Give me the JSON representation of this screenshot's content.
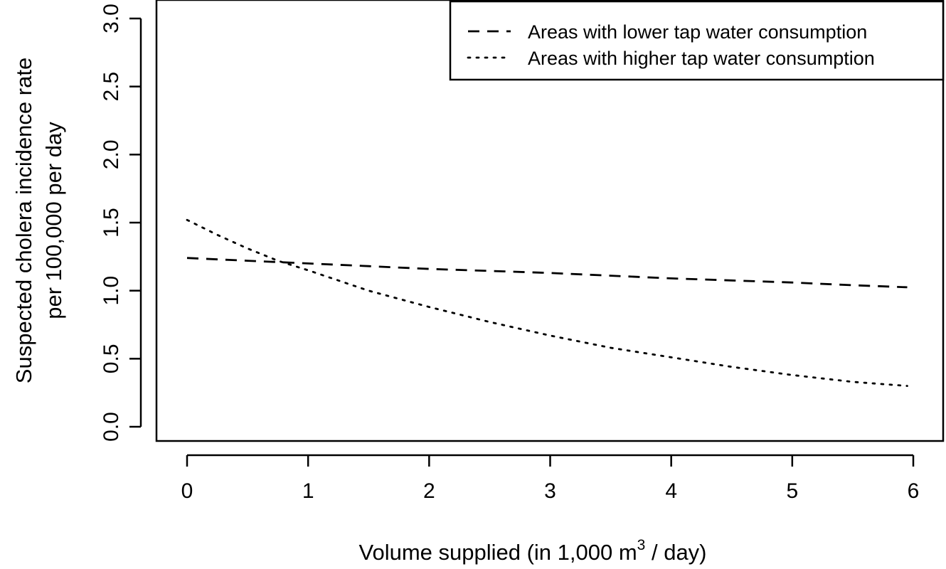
{
  "chart_data": {
    "type": "line",
    "title": "",
    "xlabel": {
      "prefix": "Volume supplied (in 1,000 m",
      "superscript": "3",
      "suffix": " / day)"
    },
    "ylabel_lines": [
      "Suspected cholera incidence rate",
      "per 100,000 per day"
    ],
    "xlim": [
      0,
      6
    ],
    "ylim": [
      0,
      3
    ],
    "x_ticks": [
      0,
      1,
      2,
      3,
      4,
      5,
      6
    ],
    "x_tick_labels": [
      "0",
      "1",
      "2",
      "3",
      "4",
      "5",
      "6"
    ],
    "y_ticks": [
      0,
      0.5,
      1,
      1.5,
      2,
      2.5,
      3
    ],
    "y_tick_labels": [
      "0.0",
      "0.5",
      "1.0",
      "1.5",
      "2.0",
      "2.5",
      "3.0"
    ],
    "grid": false,
    "legend_position": "top-right",
    "series": [
      {
        "name": "Areas with lower tap water consumption",
        "line_style": "dashed",
        "color": "#000000",
        "x": [
          0,
          0.5,
          1,
          1.5,
          2,
          2.5,
          3,
          3.5,
          4,
          4.5,
          5,
          5.5,
          5.95
        ],
        "y": [
          1.24,
          1.22,
          1.2,
          1.18,
          1.16,
          1.145,
          1.13,
          1.11,
          1.09,
          1.075,
          1.06,
          1.04,
          1.025
        ]
      },
      {
        "name": "Areas with higher tap water consumption",
        "line_style": "dotted",
        "color": "#000000",
        "x": [
          0,
          0.25,
          0.5,
          0.75,
          1,
          1.5,
          2,
          2.5,
          3,
          3.5,
          4,
          4.5,
          5,
          5.5,
          5.95
        ],
        "y": [
          1.52,
          1.41,
          1.31,
          1.22,
          1.15,
          1.0,
          0.88,
          0.77,
          0.67,
          0.58,
          0.51,
          0.44,
          0.38,
          0.33,
          0.3
        ]
      }
    ]
  }
}
